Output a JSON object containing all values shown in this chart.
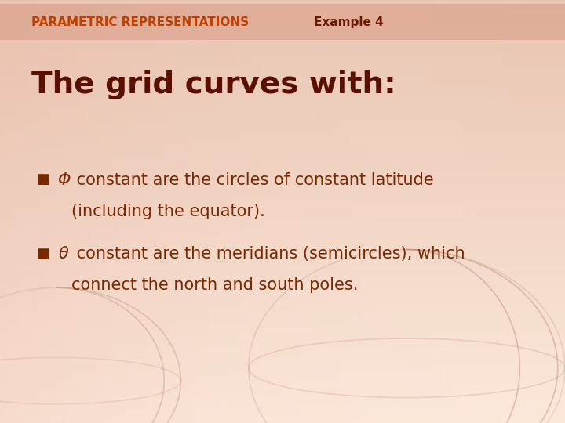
{
  "bg_top_color": "#e8c4b0",
  "bg_bottom_color": "#fce8da",
  "header_band_color": "#d4917a",
  "header_band_alpha": 0.45,
  "header_text": "PARAMETRIC REPRESENTATIONS",
  "header_text_color": "#c04000",
  "header_example_text": "Example 4",
  "header_example_color": "#6b1800",
  "header_fontsize": 11,
  "title_text": "The grid curves with:",
  "title_color": "#5a1000",
  "title_fontsize": 28,
  "bullet_color": "#7a2800",
  "bullet_fontsize": 15,
  "bullet_marker": "■",
  "phi_symbol": "Φ",
  "theta_symbol": "θ",
  "bullet1_line1": " constant are the circles of constant latitude",
  "bullet1_line2": "(including the equator).",
  "bullet2_line1": " constant are the meridians (semicircles), which",
  "bullet2_line2": "connect the north and south poles.",
  "figwidth": 7.2,
  "figheight": 5.4,
  "dpi": 100
}
